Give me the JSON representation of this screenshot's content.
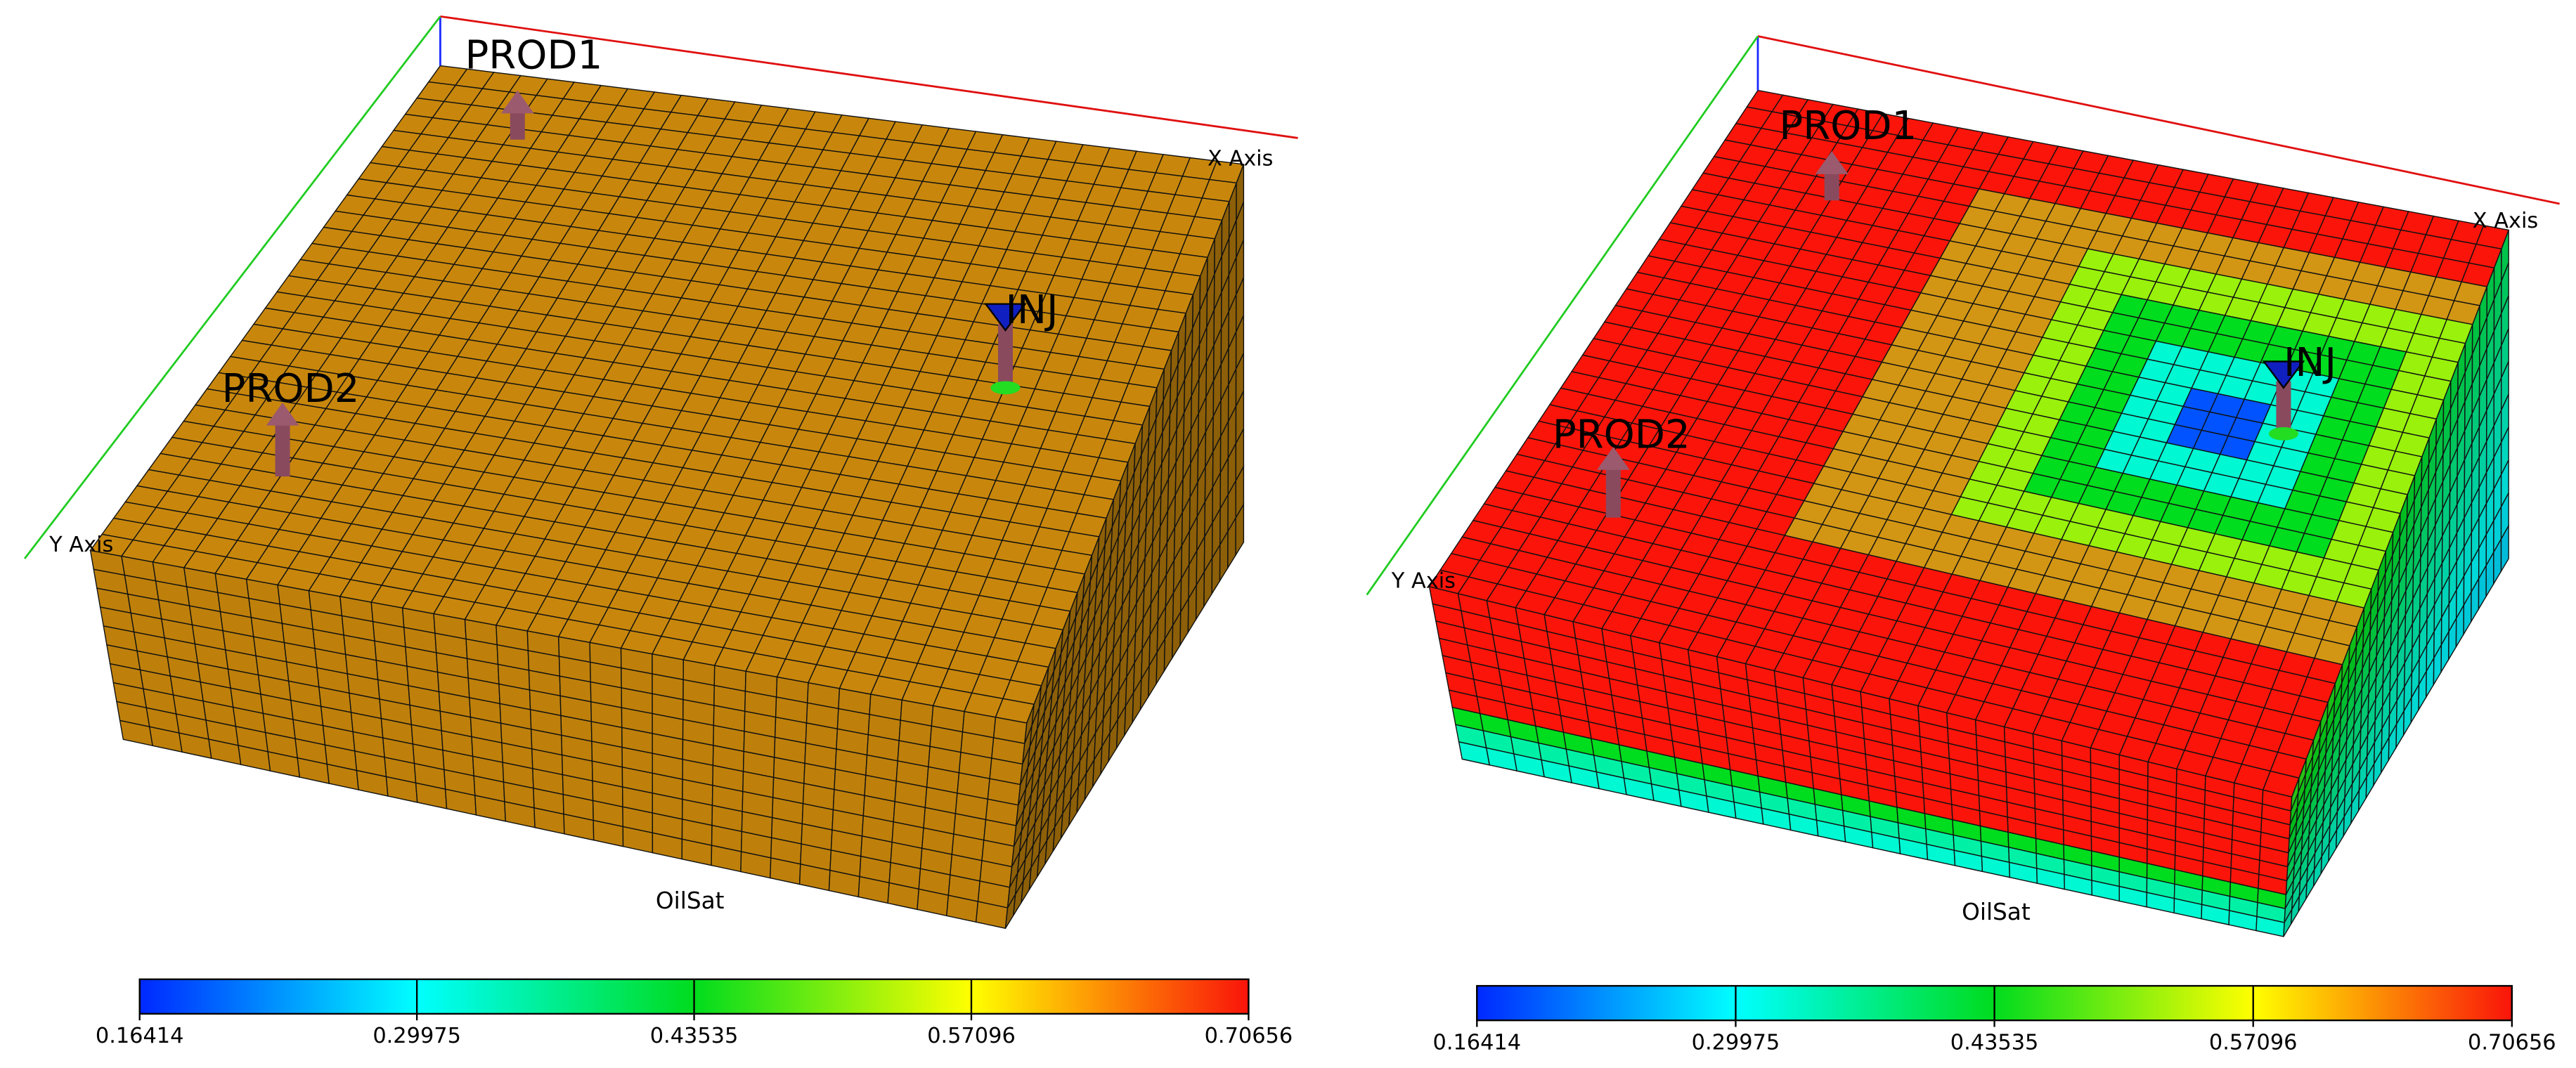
{
  "panels": [
    {
      "axes": {
        "x": "X Axis",
        "y": "Y Axis"
      },
      "wells": [
        "PROD1",
        "PROD2",
        "INJ"
      ],
      "variable": "OilSat",
      "colorbar": {
        "ticks": [
          0.16414,
          0.29975,
          0.43535,
          0.57096,
          0.70656
        ]
      }
    },
    {
      "axes": {
        "x": "X Axis",
        "y": "Y Axis"
      },
      "wells": [
        "PROD1",
        "PROD2",
        "INJ"
      ],
      "variable": "OilSat",
      "colorbar": {
        "ticks": [
          0.16414,
          0.29975,
          0.43535,
          0.57096,
          0.70656
        ]
      }
    }
  ]
}
